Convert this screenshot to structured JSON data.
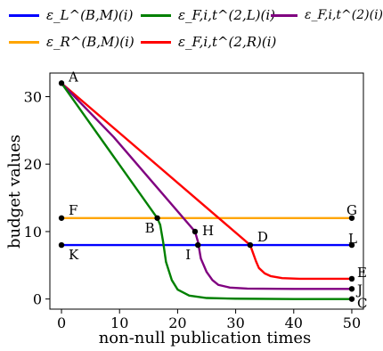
{
  "legend": [
    {
      "name": "ε_L^(B,M)(i)",
      "color": "#0000ff"
    },
    {
      "name": "ε_F,i,t^(2,L)(i)",
      "color": "#008000"
    },
    {
      "name": "ε_F,i,t^(2)(i)",
      "color": "#800080"
    },
    {
      "name": "ε_R^(B,M)(i)",
      "color": "#ffa500"
    },
    {
      "name": "ε_F,i,t^(2,R)(i)",
      "color": "#ff0000"
    }
  ],
  "chart_data": {
    "type": "line",
    "title": "",
    "xlabel": "non-null publication times",
    "ylabel": "budget values",
    "xlim": [
      -2,
      52
    ],
    "ylim": [
      -1.5,
      33.5
    ],
    "xticks": [
      0,
      10,
      20,
      30,
      40,
      50
    ],
    "yticks": [
      0,
      10,
      20,
      30
    ],
    "grid": false,
    "legend_position": "top",
    "series": [
      {
        "name": "ε_L^(B,M)(i)",
        "color": "#0000ff",
        "x": [
          0,
          50
        ],
        "y": [
          8,
          8
        ]
      },
      {
        "name": "ε_R^(B,M)(i)",
        "color": "#ffa500",
        "x": [
          0,
          50
        ],
        "y": [
          12,
          12
        ]
      },
      {
        "name": "ε_F,i,t^(2,L)(i)",
        "color": "#008000",
        "x": [
          0,
          16.5,
          17,
          17.5,
          18,
          19,
          20,
          22,
          25,
          30,
          40,
          50
        ],
        "y": [
          32,
          12,
          11,
          8.5,
          5.5,
          2.8,
          1.4,
          0.5,
          0.15,
          0.05,
          0,
          0
        ]
      },
      {
        "name": "ε_F,i,t^(2)(i)",
        "color": "#800080",
        "x": [
          0,
          9,
          16,
          23,
          23.5,
          24,
          25,
          26,
          27,
          29,
          32,
          40,
          50
        ],
        "y": [
          32,
          24,
          17,
          10,
          8.5,
          6,
          4,
          2.8,
          2.1,
          1.7,
          1.55,
          1.5,
          1.5
        ]
      },
      {
        "name": "ε_F,i,t^(2,R)(i)",
        "color": "#ff0000",
        "x": [
          0,
          32.5,
          33,
          33.5,
          34,
          35,
          36,
          38,
          41,
          45,
          50
        ],
        "y": [
          32,
          8,
          6.8,
          5.6,
          4.6,
          3.8,
          3.4,
          3.1,
          3.0,
          3.0,
          3.0
        ]
      }
    ],
    "points": [
      {
        "label": "A",
        "x": 0,
        "y": 32
      },
      {
        "label": "B",
        "x": 16.5,
        "y": 12
      },
      {
        "label": "C",
        "x": 50,
        "y": 0
      },
      {
        "label": "D",
        "x": 32.5,
        "y": 8
      },
      {
        "label": "E",
        "x": 50,
        "y": 3
      },
      {
        "label": "F",
        "x": 0,
        "y": 12
      },
      {
        "label": "G",
        "x": 50,
        "y": 12
      },
      {
        "label": "H",
        "x": 23,
        "y": 10
      },
      {
        "label": "I",
        "x": 23.5,
        "y": 8
      },
      {
        "label": "J",
        "x": 50,
        "y": 1.5
      },
      {
        "label": "K",
        "x": 0,
        "y": 8
      },
      {
        "label": "L",
        "x": 50,
        "y": 8
      }
    ]
  }
}
